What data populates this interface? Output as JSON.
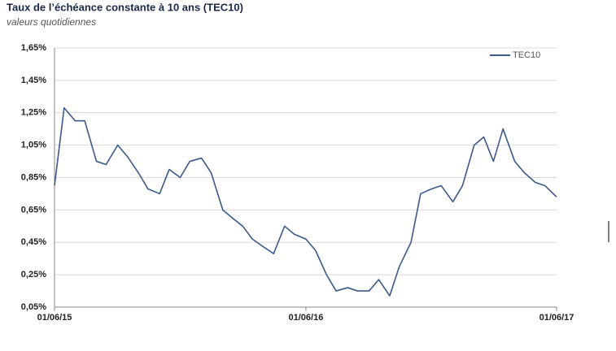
{
  "chart_data": {
    "type": "line",
    "title": "Taux de l’échéance constante à 10 ans (TEC10)",
    "subtitle": "valeurs quotidiennes",
    "x": [
      "01/06/15",
      "15/06/15",
      "01/07/15",
      "15/07/15",
      "01/08/15",
      "15/08/15",
      "01/09/15",
      "15/09/15",
      "01/10/15",
      "15/10/15",
      "01/11/15",
      "15/11/15",
      "01/12/15",
      "15/12/15",
      "01/01/16",
      "15/01/16",
      "01/02/16",
      "15/02/16",
      "01/03/16",
      "15/03/16",
      "01/04/16",
      "15/04/16",
      "01/05/16",
      "15/05/16",
      "01/06/16",
      "15/06/16",
      "01/07/16",
      "15/07/16",
      "01/08/16",
      "15/08/16",
      "01/09/16",
      "15/09/16",
      "01/10/16",
      "15/10/16",
      "01/11/16",
      "15/11/16",
      "01/12/16",
      "15/12/16",
      "01/01/17",
      "15/01/17",
      "01/02/17",
      "15/02/17",
      "01/03/17",
      "15/03/17",
      "01/04/17",
      "15/04/17",
      "01/05/17",
      "15/05/17",
      "01/06/17"
    ],
    "series": [
      {
        "name": "TEC10",
        "color": "#3a5a8a",
        "values": [
          0.8,
          1.28,
          1.2,
          1.2,
          0.95,
          0.93,
          1.05,
          0.98,
          0.88,
          0.78,
          0.75,
          0.9,
          0.85,
          0.95,
          0.97,
          0.88,
          0.65,
          0.6,
          0.55,
          0.47,
          0.42,
          0.38,
          0.55,
          0.5,
          0.47,
          0.4,
          0.25,
          0.15,
          0.17,
          0.15,
          0.15,
          0.22,
          0.12,
          0.3,
          0.45,
          0.75,
          0.78,
          0.8,
          0.7,
          0.8,
          1.05,
          1.1,
          0.95,
          1.15,
          0.95,
          0.88,
          0.82,
          0.8,
          0.73
        ]
      }
    ],
    "xticks": [
      "01/06/15",
      "01/06/16",
      "01/06/17"
    ],
    "ylim": [
      0.05,
      1.65
    ],
    "yticks": [
      {
        "value": 0.05,
        "label": "0,05%"
      },
      {
        "value": 0.25,
        "label": "0,25%"
      },
      {
        "value": 0.45,
        "label": "0,45%"
      },
      {
        "value": 0.65,
        "label": "0,65%"
      },
      {
        "value": 0.85,
        "label": "0,85%"
      },
      {
        "value": 1.05,
        "label": "1,05%"
      },
      {
        "value": 1.25,
        "label": "1,25%"
      },
      {
        "value": 1.45,
        "label": "1,45%"
      },
      {
        "value": 1.65,
        "label": "1,65%"
      }
    ],
    "grid": true,
    "legend": "top-right"
  }
}
